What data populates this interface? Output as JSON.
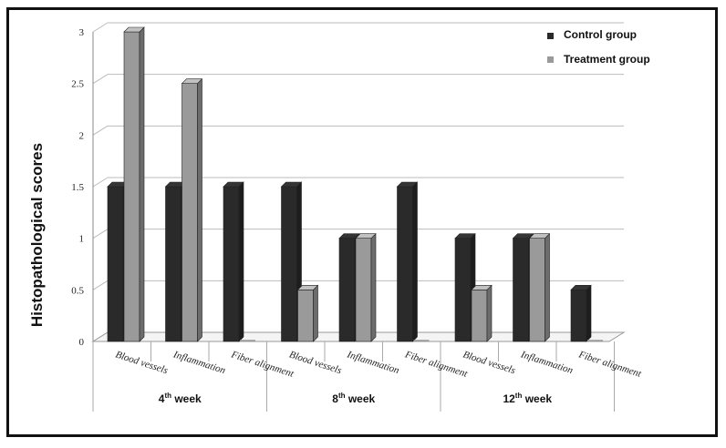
{
  "chart_data": {
    "type": "bar",
    "title": "",
    "ylabel": "Histopathological scores",
    "xlabel": "",
    "ylim": [
      0,
      3
    ],
    "yticks": [
      "0",
      "0.5",
      "1",
      "1.5",
      "2",
      "2.5",
      "3"
    ],
    "groups": [
      {
        "label": "4",
        "sup": "th",
        "suffix": " week"
      },
      {
        "label": "8",
        "sup": "th",
        "suffix": " week"
      },
      {
        "label": "12",
        "sup": "th",
        "suffix": " week"
      }
    ],
    "categories": [
      "Blood vessels",
      "Inflammation",
      "Fiber alignment",
      "Blood vessels",
      "Inflammation",
      "Fiber alignment",
      "Blood vessels",
      "Inflammation",
      "Fiber alignment"
    ],
    "series": [
      {
        "name": "Control group",
        "color": "#2a2a2a",
        "values": [
          1.5,
          1.5,
          1.5,
          1.5,
          1.0,
          1.5,
          1.0,
          1.0,
          0.5
        ]
      },
      {
        "name": "Treatment group",
        "color": "#9a9a9a",
        "values": [
          3.0,
          2.5,
          0,
          0.5,
          1.0,
          0,
          0.5,
          1.0,
          0
        ]
      }
    ],
    "grid": true,
    "legend": "top-right"
  }
}
